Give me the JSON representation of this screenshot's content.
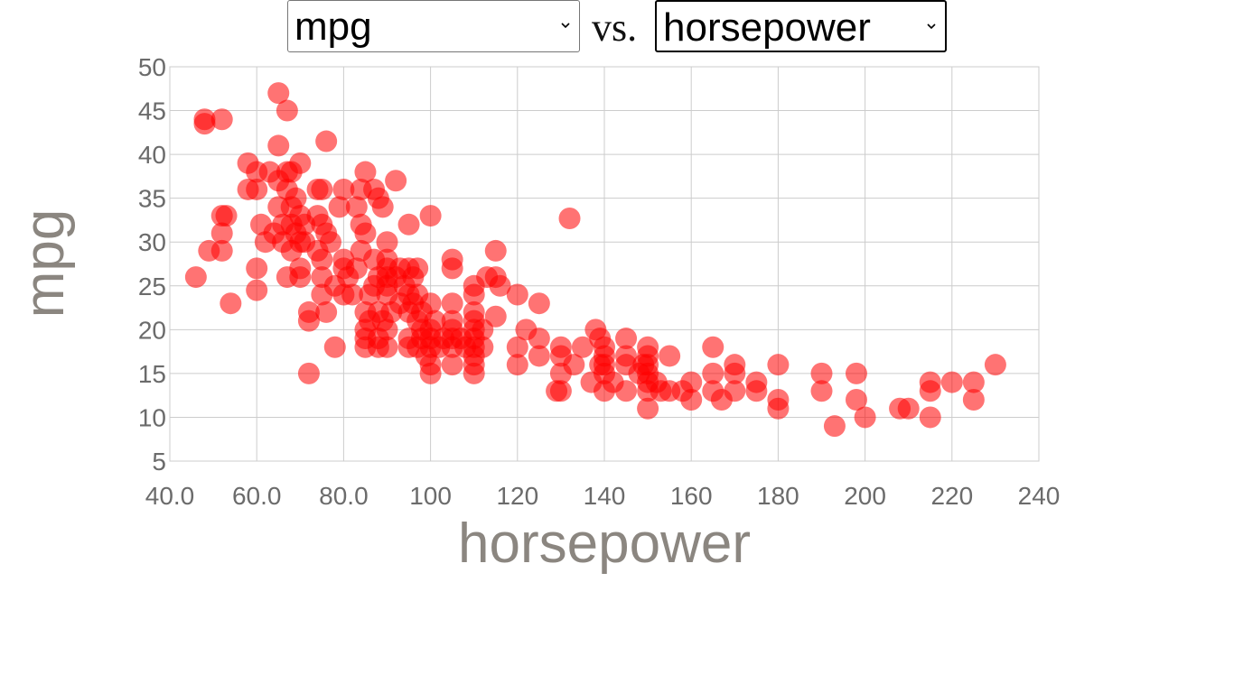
{
  "controls": {
    "y_select": {
      "value": "mpg"
    },
    "vs_label": "vs.",
    "x_select": {
      "value": "horsepower"
    }
  },
  "colors": {
    "point": "#ff0000",
    "grid": "#cccccc",
    "tick_text": "#6b6b6b",
    "axis_title": "#8b8680"
  },
  "icons": {
    "dropdown": "chevron-down-icon"
  },
  "chart_data": {
    "type": "scatter",
    "title": "",
    "xlabel": "horsepower",
    "ylabel": "mpg",
    "xlim": [
      40,
      240
    ],
    "ylim": [
      5,
      50
    ],
    "grid": true,
    "legend": "none",
    "x_ticks": [
      "40.0",
      "60.0",
      "80.0",
      "100",
      "120",
      "140",
      "160",
      "180",
      "200",
      "220",
      "240"
    ],
    "y_ticks": [
      "5",
      "10",
      "15",
      "20",
      "25",
      "30",
      "35",
      "40",
      "45",
      "50"
    ],
    "points": [
      [
        46,
        26
      ],
      [
        48,
        44
      ],
      [
        48,
        43.5
      ],
      [
        49,
        29
      ],
      [
        52,
        44
      ],
      [
        52,
        33
      ],
      [
        53,
        33
      ],
      [
        52,
        31
      ],
      [
        52,
        29
      ],
      [
        54,
        23
      ],
      [
        58,
        39
      ],
      [
        58,
        36
      ],
      [
        60,
        38
      ],
      [
        60,
        36
      ],
      [
        60,
        27
      ],
      [
        60,
        24.5
      ],
      [
        61,
        32
      ],
      [
        62,
        30
      ],
      [
        63,
        38
      ],
      [
        64,
        31
      ],
      [
        65,
        47
      ],
      [
        65,
        41
      ],
      [
        65,
        37
      ],
      [
        65,
        34
      ],
      [
        66,
        32
      ],
      [
        66,
        30
      ],
      [
        67,
        45
      ],
      [
        67,
        38
      ],
      [
        67,
        36
      ],
      [
        67,
        26
      ],
      [
        68,
        38
      ],
      [
        68,
        34
      ],
      [
        68,
        32
      ],
      [
        68,
        29
      ],
      [
        69,
        31
      ],
      [
        69,
        35
      ],
      [
        70,
        39
      ],
      [
        70,
        33
      ],
      [
        70,
        30
      ],
      [
        70,
        27
      ],
      [
        70,
        26
      ],
      [
        71,
        32
      ],
      [
        71,
        30
      ],
      [
        72,
        22
      ],
      [
        72,
        21
      ],
      [
        72,
        15
      ],
      [
        74,
        36
      ],
      [
        74,
        33
      ],
      [
        74,
        29
      ],
      [
        75,
        36
      ],
      [
        75,
        32
      ],
      [
        75,
        28
      ],
      [
        75,
        26
      ],
      [
        75,
        24
      ],
      [
        76,
        41.5
      ],
      [
        76,
        31
      ],
      [
        76,
        22
      ],
      [
        77,
        30
      ],
      [
        78,
        25
      ],
      [
        78,
        18
      ],
      [
        79,
        34
      ],
      [
        80,
        36
      ],
      [
        80,
        28
      ],
      [
        80,
        27
      ],
      [
        80,
        24
      ],
      [
        81,
        26
      ],
      [
        82,
        24
      ],
      [
        83,
        34
      ],
      [
        83,
        27
      ],
      [
        84,
        36
      ],
      [
        84,
        32
      ],
      [
        84,
        29
      ],
      [
        85,
        38
      ],
      [
        85,
        31
      ],
      [
        85,
        22
      ],
      [
        85,
        20
      ],
      [
        85,
        19
      ],
      [
        85,
        18
      ],
      [
        86,
        24
      ],
      [
        86,
        21
      ],
      [
        87,
        36
      ],
      [
        87,
        28
      ],
      [
        87,
        25
      ],
      [
        88,
        35
      ],
      [
        88,
        26
      ],
      [
        88,
        22
      ],
      [
        88,
        19
      ],
      [
        88,
        18
      ],
      [
        89,
        34
      ],
      [
        89,
        21
      ],
      [
        90,
        30
      ],
      [
        90,
        28
      ],
      [
        90,
        27
      ],
      [
        90,
        26
      ],
      [
        90,
        25
      ],
      [
        90,
        24
      ],
      [
        90,
        20
      ],
      [
        90,
        18
      ],
      [
        91,
        22
      ],
      [
        92,
        37
      ],
      [
        92,
        26
      ],
      [
        93,
        27
      ],
      [
        93,
        23
      ],
      [
        94,
        25
      ],
      [
        95,
        32
      ],
      [
        95,
        27
      ],
      [
        95,
        24
      ],
      [
        95,
        22
      ],
      [
        95,
        19
      ],
      [
        95,
        18
      ],
      [
        96,
        26
      ],
      [
        96,
        23
      ],
      [
        97,
        27
      ],
      [
        97,
        24
      ],
      [
        97,
        21
      ],
      [
        97,
        18
      ],
      [
        98,
        22
      ],
      [
        98,
        20
      ],
      [
        98,
        19
      ],
      [
        99,
        17
      ],
      [
        100,
        33
      ],
      [
        100,
        23
      ],
      [
        100,
        20
      ],
      [
        100,
        19
      ],
      [
        100,
        18
      ],
      [
        100,
        16
      ],
      [
        100,
        15
      ],
      [
        101,
        21
      ],
      [
        102,
        18
      ],
      [
        103,
        19
      ],
      [
        105,
        28
      ],
      [
        105,
        27
      ],
      [
        105,
        23
      ],
      [
        105,
        21
      ],
      [
        105,
        20
      ],
      [
        105,
        19
      ],
      [
        105,
        18
      ],
      [
        105,
        16
      ],
      [
        107,
        19
      ],
      [
        108,
        18
      ],
      [
        110,
        25
      ],
      [
        110,
        24
      ],
      [
        110,
        22
      ],
      [
        110,
        21
      ],
      [
        110,
        20
      ],
      [
        110,
        19
      ],
      [
        110,
        18
      ],
      [
        110,
        17
      ],
      [
        110,
        16
      ],
      [
        110,
        15
      ],
      [
        112,
        20
      ],
      [
        112,
        18
      ],
      [
        113,
        26
      ],
      [
        115,
        29
      ],
      [
        115,
        26
      ],
      [
        115,
        21.5
      ],
      [
        116,
        25
      ],
      [
        120,
        24
      ],
      [
        120,
        18
      ],
      [
        120,
        16
      ],
      [
        122,
        20
      ],
      [
        125,
        23
      ],
      [
        125,
        19
      ],
      [
        125,
        17
      ],
      [
        129,
        13
      ],
      [
        130,
        18
      ],
      [
        130,
        17
      ],
      [
        130,
        15
      ],
      [
        130,
        13
      ],
      [
        132,
        32.7
      ],
      [
        133,
        16
      ],
      [
        135,
        18
      ],
      [
        137,
        14
      ],
      [
        138,
        20
      ],
      [
        139,
        19
      ],
      [
        139,
        16
      ],
      [
        140,
        18
      ],
      [
        140,
        17
      ],
      [
        140,
        16
      ],
      [
        140,
        15
      ],
      [
        140,
        13
      ],
      [
        142,
        14
      ],
      [
        145,
        19
      ],
      [
        145,
        17
      ],
      [
        145,
        16
      ],
      [
        145,
        13
      ],
      [
        148,
        15
      ],
      [
        149,
        16
      ],
      [
        150,
        18
      ],
      [
        150,
        17
      ],
      [
        150,
        16
      ],
      [
        150,
        15
      ],
      [
        150,
        14
      ],
      [
        150,
        13
      ],
      [
        150,
        11
      ],
      [
        152,
        14
      ],
      [
        153,
        13
      ],
      [
        155,
        17
      ],
      [
        155,
        13
      ],
      [
        158,
        13
      ],
      [
        160,
        14
      ],
      [
        160,
        12
      ],
      [
        165,
        18
      ],
      [
        165,
        15
      ],
      [
        165,
        13
      ],
      [
        167,
        12
      ],
      [
        170,
        16
      ],
      [
        170,
        15
      ],
      [
        170,
        13
      ],
      [
        175,
        14
      ],
      [
        175,
        13
      ],
      [
        180,
        16
      ],
      [
        180,
        12
      ],
      [
        180,
        11
      ],
      [
        190,
        15
      ],
      [
        190,
        13
      ],
      [
        193,
        9
      ],
      [
        198,
        15
      ],
      [
        198,
        12
      ],
      [
        200,
        10
      ],
      [
        208,
        11
      ],
      [
        210,
        11
      ],
      [
        215,
        14
      ],
      [
        215,
        13
      ],
      [
        215,
        10
      ],
      [
        220,
        14
      ],
      [
        225,
        14
      ],
      [
        225,
        12
      ],
      [
        230,
        16
      ]
    ]
  }
}
